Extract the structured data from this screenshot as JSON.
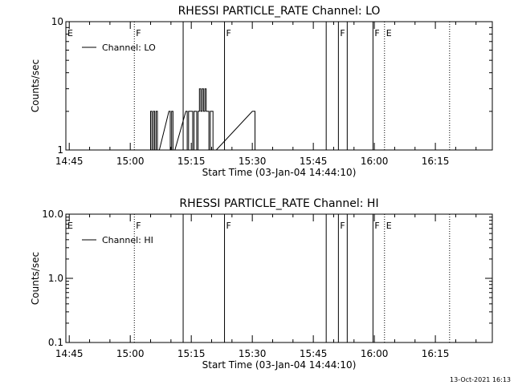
{
  "chart_data": [
    {
      "type": "line",
      "title": "RHESSI PARTICLE_RATE Channel: LO",
      "xlabel": "Start Time (03-Jan-04 14:44:10)",
      "ylabel": "Counts/sec",
      "yscale": "log",
      "ylim": [
        1,
        10
      ],
      "xlim": [
        "14:44:10",
        "16:29:00"
      ],
      "x_ticks": [
        "14:45",
        "15:00",
        "15:15",
        "15:30",
        "15:45",
        "16:00",
        "16:15"
      ],
      "y_ticks": [
        "1",
        "10"
      ],
      "legend": {
        "position": "top-left",
        "label": "Channel: LO"
      },
      "flags": [
        {
          "label": "E",
          "time": "14:44:10",
          "style": "none"
        },
        {
          "label": "F",
          "time": "15:01:00",
          "style": "dotted"
        },
        {
          "label": "",
          "time": "15:13:00",
          "style": "solid"
        },
        {
          "label": "F",
          "time": "15:23:10",
          "style": "solid"
        },
        {
          "label": "",
          "time": "15:48:10",
          "style": "solid"
        },
        {
          "label": "F",
          "time": "15:51:10",
          "style": "solid"
        },
        {
          "label": "",
          "time": "15:53:20",
          "style": "solid"
        },
        {
          "label": "F",
          "time": "15:59:40",
          "style": "solid"
        },
        {
          "label": "E",
          "time": "16:02:30",
          "style": "dotted"
        },
        {
          "label": "",
          "time": "16:18:30",
          "style": "dotted"
        }
      ],
      "series": [
        {
          "x": [
            "15:05:00",
            "15:05:20",
            "15:05:40",
            "15:06:00",
            "15:06:20",
            "15:06:40",
            "15:09:30",
            "15:09:50",
            "15:10:10",
            "15:10:30",
            "15:13:40",
            "15:14:00",
            "15:14:20",
            "15:15:00",
            "15:15:20",
            "15:15:40",
            "15:16:00",
            "15:16:20",
            "15:16:40",
            "15:17:00",
            "15:17:20",
            "15:17:40",
            "15:18:00",
            "15:18:20",
            "15:18:40",
            "15:19:00",
            "15:19:20",
            "15:19:40",
            "15:20:00",
            "15:20:20",
            "15:20:40",
            "15:30:00",
            "15:30:20",
            "15:30:40"
          ],
          "y": [
            2,
            1,
            2,
            1,
            2,
            1,
            2,
            1,
            2,
            1,
            2,
            1,
            2,
            2,
            1,
            2,
            2,
            1,
            2,
            3,
            2,
            3,
            2,
            3,
            2,
            2,
            1,
            2,
            2,
            1,
            1,
            2,
            2,
            1
          ]
        }
      ]
    },
    {
      "type": "line",
      "title": "RHESSI PARTICLE_RATE Channel: HI",
      "xlabel": "Start Time (03-Jan-04 14:44:10)",
      "ylabel": "Counts/sec",
      "yscale": "log",
      "ylim": [
        0.1,
        10
      ],
      "xlim": [
        "14:44:10",
        "16:29:00"
      ],
      "x_ticks": [
        "14:45",
        "15:00",
        "15:15",
        "15:30",
        "15:45",
        "16:00",
        "16:15"
      ],
      "y_ticks": [
        "0.1",
        "1.0",
        "10.0"
      ],
      "legend": {
        "position": "top-left",
        "label": "Channel: HI"
      },
      "flags": [
        {
          "label": "E",
          "time": "14:44:10",
          "style": "none"
        },
        {
          "label": "F",
          "time": "15:01:00",
          "style": "dotted"
        },
        {
          "label": "",
          "time": "15:13:00",
          "style": "solid"
        },
        {
          "label": "F",
          "time": "15:23:10",
          "style": "solid"
        },
        {
          "label": "",
          "time": "15:48:10",
          "style": "solid"
        },
        {
          "label": "F",
          "time": "15:51:10",
          "style": "solid"
        },
        {
          "label": "",
          "time": "15:53:20",
          "style": "solid"
        },
        {
          "label": "F",
          "time": "15:59:40",
          "style": "solid"
        },
        {
          "label": "E",
          "time": "16:02:30",
          "style": "dotted"
        },
        {
          "label": "",
          "time": "16:18:30",
          "style": "dotted"
        }
      ],
      "series": [
        {
          "x": [],
          "y": []
        }
      ]
    }
  ],
  "footer": {
    "timestamp": "13-Oct-2021 16:13"
  }
}
